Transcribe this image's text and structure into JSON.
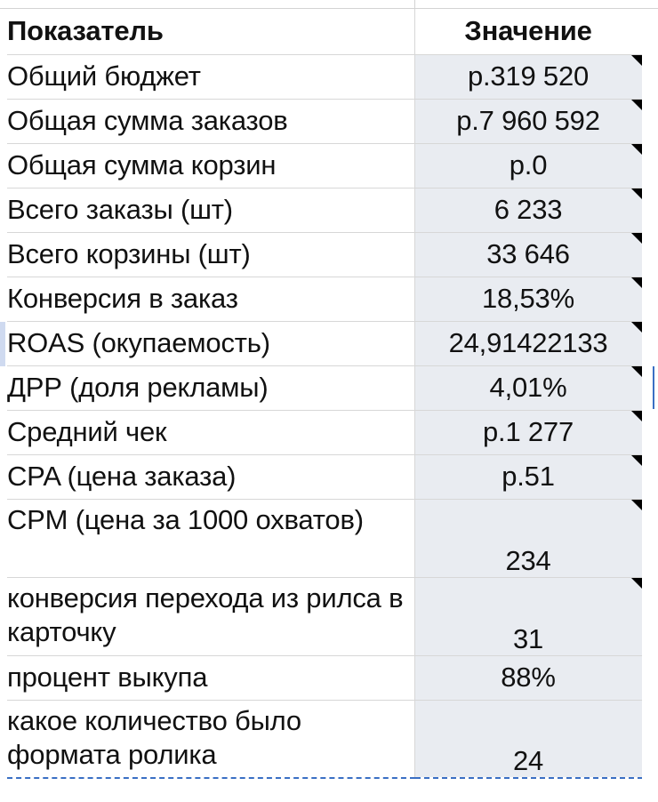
{
  "table": {
    "header": {
      "label": "Показатель",
      "value": "Значение"
    },
    "rows": [
      {
        "label": "Общий бюджет",
        "value": "р.319 520",
        "note": true,
        "tall": false
      },
      {
        "label": "Общая сумма заказов",
        "value": "р.7 960 592",
        "note": true,
        "tall": false
      },
      {
        "label": "Общая сумма корзин",
        "value": "р.0",
        "note": true,
        "tall": false
      },
      {
        "label": "Всего заказы (шт)",
        "value": "6 233",
        "note": true,
        "tall": false
      },
      {
        "label": "Всего корзины (шт)",
        "value": "33 646",
        "note": true,
        "tall": false
      },
      {
        "label": "Конверсия в заказ",
        "value": "18,53%",
        "note": true,
        "tall": false
      },
      {
        "label": "ROAS (окупаемость)",
        "value": "24,91422133",
        "note": true,
        "tall": false
      },
      {
        "label": "ДРР (доля рекламы)",
        "value": "4,01%",
        "note": true,
        "tall": false
      },
      {
        "label": "Средний чек",
        "value": "р.1 277",
        "note": true,
        "tall": false
      },
      {
        "label": "CPA (цена заказа)",
        "value": "р.51",
        "note": true,
        "tall": false
      },
      {
        "label": "CPM (цена за 1000 охватов)",
        "value": "234",
        "note": true,
        "tall": true
      },
      {
        "label": "конверсия перехода из рилса в карточку",
        "value": "31",
        "note": true,
        "tall": true
      },
      {
        "label": "процент выкупа",
        "value": "88%",
        "note": false,
        "tall": false
      },
      {
        "label": "какое количество было формата  ролика",
        "value": "24",
        "note": false,
        "tall": true
      }
    ]
  }
}
